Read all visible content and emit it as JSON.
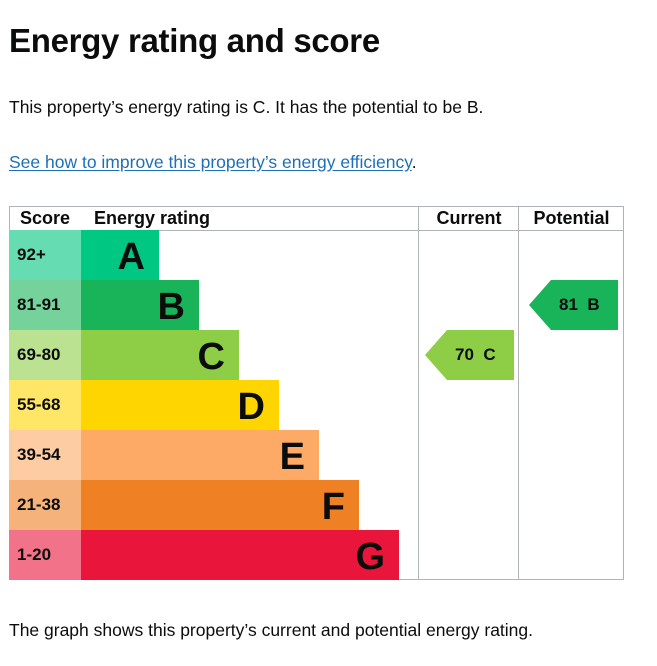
{
  "page": {
    "title": "Energy rating and score",
    "summary": "This property’s energy rating is C. It has the potential to be B.",
    "improve_link": "See how to improve this property’s energy efficiency",
    "improve_link_suffix": ".",
    "footer": "The graph shows this property’s current and potential energy rating."
  },
  "chart_data": {
    "type": "table",
    "headers": {
      "score": "Score",
      "rating": "Energy rating",
      "current": "Current",
      "potential": "Potential"
    },
    "bands": [
      {
        "score": "92+",
        "letter": "A",
        "color": "#00c781",
        "score_bg": "#66dcb3"
      },
      {
        "score": "81-91",
        "letter": "B",
        "color": "#19b459",
        "score_bg": "#75d29b"
      },
      {
        "score": "69-80",
        "letter": "C",
        "color": "#8dce46",
        "score_bg": "#bbe290"
      },
      {
        "score": "55-68",
        "letter": "D",
        "color": "#ffd500",
        "score_bg": "#ffe666"
      },
      {
        "score": "39-54",
        "letter": "E",
        "color": "#fcaa65",
        "score_bg": "#fdcca3"
      },
      {
        "score": "21-38",
        "letter": "F",
        "color": "#ef8023",
        "score_bg": "#f5b37b"
      },
      {
        "score": "1-20",
        "letter": "G",
        "color": "#e9153b",
        "score_bg": "#f27389"
      }
    ],
    "current": {
      "score": 70,
      "band": "C",
      "label": "70  C",
      "color": "#8dce46"
    },
    "potential": {
      "score": 81,
      "band": "B",
      "label": "81  B",
      "color": "#19b459"
    }
  }
}
